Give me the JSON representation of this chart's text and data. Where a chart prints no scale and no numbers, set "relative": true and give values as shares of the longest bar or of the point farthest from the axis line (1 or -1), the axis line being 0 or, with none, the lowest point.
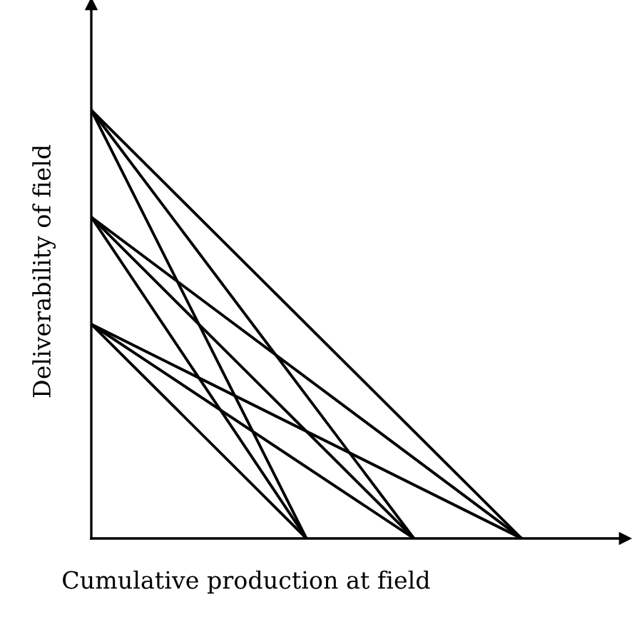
{
  "chart_data": {
    "type": "line",
    "relative": true,
    "xlabel": "Cumulative production at field",
    "ylabel": "Deliverability of field",
    "categories": [
      null,
      null,
      null,
      null,
      null
    ],
    "legend": false,
    "marker": "none",
    "line_style": "solid",
    "tick_labels": false,
    "series": [
      {
        "color": "#000000",
        "values": [
          1,
          null,
          0,
          null,
          null
        ]
      },
      {
        "color": "#000000",
        "values": [
          1,
          null,
          null,
          0,
          null
        ]
      },
      {
        "color": "#000000",
        "values": [
          1,
          null,
          null,
          null,
          0
        ]
      },
      {
        "color": "#000000",
        "values": [
          0.75,
          null,
          0,
          null,
          null
        ]
      },
      {
        "color": "#000000",
        "values": [
          0.75,
          null,
          null,
          0,
          null
        ]
      },
      {
        "color": "#000000",
        "values": [
          0.75,
          null,
          null,
          null,
          0
        ]
      },
      {
        "color": "#000000",
        "values": [
          0.5,
          null,
          0,
          null,
          null
        ]
      },
      {
        "color": "#000000",
        "values": [
          0.5,
          null,
          null,
          0,
          null
        ]
      },
      {
        "color": "#000000",
        "values": [
          0.5,
          null,
          null,
          null,
          0
        ]
      }
    ]
  }
}
